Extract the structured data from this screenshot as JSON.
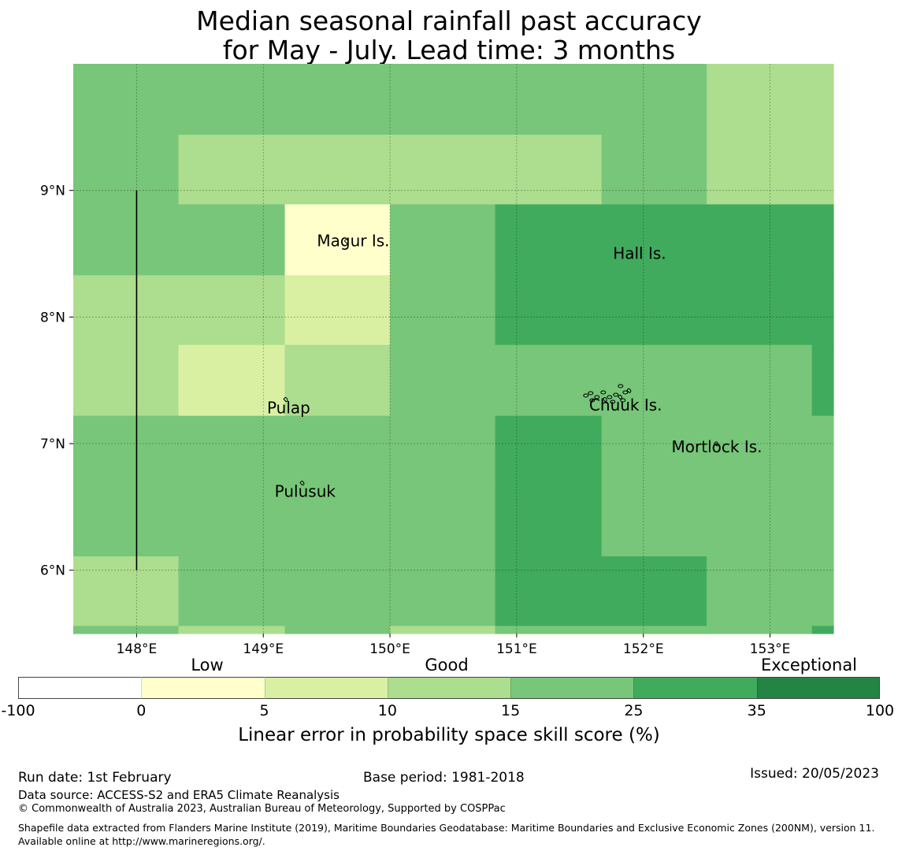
{
  "title": {
    "line1": "Median seasonal rainfall past accuracy",
    "line2": "for May - July. Lead time: 3 months"
  },
  "map": {
    "lon_range": [
      147.5,
      153.5
    ],
    "lat_range": [
      5.5,
      10.0
    ],
    "lon_ticks": [
      {
        "value": 148,
        "label": "148°E"
      },
      {
        "value": 149,
        "label": "149°E"
      },
      {
        "value": 150,
        "label": "150°E"
      },
      {
        "value": 151,
        "label": "151°E"
      },
      {
        "value": 152,
        "label": "152°E"
      },
      {
        "value": 153,
        "label": "153°E"
      }
    ],
    "lat_ticks": [
      {
        "value": 9,
        "label": "9°N"
      },
      {
        "value": 8,
        "label": "8°N"
      },
      {
        "value": 7,
        "label": "7°N"
      },
      {
        "value": 6,
        "label": "6°N"
      }
    ],
    "categories": {
      "c1": "#ffffcc",
      "c2": "#d9f0a3",
      "c3": "#addd8e",
      "c4": "#78c679",
      "c5": "#41ab5d"
    },
    "cells": [
      {
        "lon": [
          147.5,
          148.33
        ],
        "lat": [
          9.44,
          10.0
        ],
        "cat": "c4"
      },
      {
        "lon": [
          148.33,
          151.67
        ],
        "lat": [
          9.44,
          10.0
        ],
        "cat": "c4"
      },
      {
        "lon": [
          151.67,
          152.5
        ],
        "lat": [
          9.44,
          10.0
        ],
        "cat": "c4"
      },
      {
        "lon": [
          152.5,
          153.5
        ],
        "lat": [
          9.44,
          10.0
        ],
        "cat": "c3"
      },
      {
        "lon": [
          147.5,
          148.33
        ],
        "lat": [
          8.89,
          9.44
        ],
        "cat": "c4"
      },
      {
        "lon": [
          148.33,
          151.67
        ],
        "lat": [
          8.89,
          9.44
        ],
        "cat": "c3"
      },
      {
        "lon": [
          151.67,
          152.5
        ],
        "lat": [
          8.89,
          9.44
        ],
        "cat": "c4"
      },
      {
        "lon": [
          152.5,
          153.5
        ],
        "lat": [
          8.89,
          9.44
        ],
        "cat": "c3"
      },
      {
        "lon": [
          147.5,
          149.17
        ],
        "lat": [
          8.33,
          8.89
        ],
        "cat": "c4"
      },
      {
        "lon": [
          149.17,
          150.0
        ],
        "lat": [
          8.33,
          8.89
        ],
        "cat": "c1"
      },
      {
        "lon": [
          150.0,
          150.83
        ],
        "lat": [
          8.33,
          8.89
        ],
        "cat": "c4"
      },
      {
        "lon": [
          150.83,
          153.5
        ],
        "lat": [
          8.33,
          8.89
        ],
        "cat": "c5"
      },
      {
        "lon": [
          147.5,
          149.17
        ],
        "lat": [
          7.78,
          8.33
        ],
        "cat": "c3"
      },
      {
        "lon": [
          149.17,
          150.0
        ],
        "lat": [
          7.78,
          8.33
        ],
        "cat": "c2"
      },
      {
        "lon": [
          150.0,
          150.83
        ],
        "lat": [
          7.78,
          8.33
        ],
        "cat": "c4"
      },
      {
        "lon": [
          150.83,
          153.5
        ],
        "lat": [
          7.78,
          8.33
        ],
        "cat": "c5"
      },
      {
        "lon": [
          147.5,
          148.33
        ],
        "lat": [
          7.22,
          7.78
        ],
        "cat": "c3"
      },
      {
        "lon": [
          148.33,
          149.17
        ],
        "lat": [
          7.22,
          7.78
        ],
        "cat": "c2"
      },
      {
        "lon": [
          149.17,
          150.0
        ],
        "lat": [
          7.22,
          7.78
        ],
        "cat": "c3"
      },
      {
        "lon": [
          150.0,
          153.33
        ],
        "lat": [
          7.22,
          7.78
        ],
        "cat": "c4"
      },
      {
        "lon": [
          153.33,
          153.5
        ],
        "lat": [
          7.22,
          7.78
        ],
        "cat": "c5"
      },
      {
        "lon": [
          147.5,
          150.83
        ],
        "lat": [
          6.67,
          7.22
        ],
        "cat": "c4"
      },
      {
        "lon": [
          150.83,
          151.67
        ],
        "lat": [
          6.67,
          7.22
        ],
        "cat": "c5"
      },
      {
        "lon": [
          151.67,
          153.5
        ],
        "lat": [
          6.67,
          7.22
        ],
        "cat": "c4"
      },
      {
        "lon": [
          147.5,
          150.83
        ],
        "lat": [
          6.11,
          6.67
        ],
        "cat": "c4"
      },
      {
        "lon": [
          150.83,
          151.67
        ],
        "lat": [
          6.11,
          6.67
        ],
        "cat": "c5"
      },
      {
        "lon": [
          151.67,
          153.5
        ],
        "lat": [
          6.11,
          6.67
        ],
        "cat": "c4"
      },
      {
        "lon": [
          147.5,
          148.33
        ],
        "lat": [
          5.56,
          6.11
        ],
        "cat": "c3"
      },
      {
        "lon": [
          148.33,
          150.83
        ],
        "lat": [
          5.56,
          6.11
        ],
        "cat": "c4"
      },
      {
        "lon": [
          150.83,
          152.5
        ],
        "lat": [
          5.56,
          6.11
        ],
        "cat": "c5"
      },
      {
        "lon": [
          152.5,
          153.5
        ],
        "lat": [
          5.56,
          6.11
        ],
        "cat": "c4"
      },
      {
        "lon": [
          147.5,
          148.33
        ],
        "lat": [
          5.5,
          5.56
        ],
        "cat": "c4"
      },
      {
        "lon": [
          148.33,
          149.17
        ],
        "lat": [
          5.5,
          5.56
        ],
        "cat": "c3"
      },
      {
        "lon": [
          149.17,
          150.0
        ],
        "lat": [
          5.5,
          5.56
        ],
        "cat": "c4"
      },
      {
        "lon": [
          150.0,
          150.83
        ],
        "lat": [
          5.5,
          5.56
        ],
        "cat": "c3"
      },
      {
        "lon": [
          150.83,
          153.33
        ],
        "lat": [
          5.5,
          5.56
        ],
        "cat": "c4"
      },
      {
        "lon": [
          153.33,
          153.5
        ],
        "lat": [
          5.5,
          5.56
        ],
        "cat": "c5"
      }
    ],
    "boundary_line": {
      "lon": 148.0,
      "lat": [
        6.0,
        9.0
      ]
    },
    "islands": [
      {
        "name": "Magur Is.",
        "lon": 149.71,
        "lat": 8.56
      },
      {
        "name": "Hall Is.",
        "lon": 151.97,
        "lat": 8.46
      },
      {
        "name": "Pulap",
        "lon": 149.2,
        "lat": 7.24
      },
      {
        "name": "Chuuk Is.",
        "lon": 151.86,
        "lat": 7.26
      },
      {
        "name": "Mortlock Is.",
        "lon": 152.58,
        "lat": 6.93
      },
      {
        "name": "Pulusuk",
        "lon": 149.33,
        "lat": 6.58
      }
    ],
    "island_marks": [
      {
        "lon": 149.66,
        "lat": 8.6
      },
      {
        "lon": 149.18,
        "lat": 7.35
      },
      {
        "lon": 149.31,
        "lat": 6.69
      },
      {
        "lon": 151.7,
        "lat": 7.35
      },
      {
        "lon": 151.82,
        "lat": 7.37
      },
      {
        "lon": 151.89,
        "lat": 7.42
      },
      {
        "lon": 152.58,
        "lat": 7.0
      }
    ]
  },
  "colorbar": {
    "segments": [
      {
        "from": "-100",
        "to": "0",
        "color": "#ffffff"
      },
      {
        "from": "0",
        "to": "5",
        "color": "#ffffcc"
      },
      {
        "from": "5",
        "to": "10",
        "color": "#d9f0a3"
      },
      {
        "from": "10",
        "to": "15",
        "color": "#addd8e"
      },
      {
        "from": "15",
        "to": "25",
        "color": "#78c679"
      },
      {
        "from": "25",
        "to": "35",
        "color": "#41ab5d"
      },
      {
        "from": "35",
        "to": "100",
        "color": "#238443"
      }
    ],
    "ticks": [
      "-100",
      "0",
      "5",
      "10",
      "15",
      "25",
      "35",
      "100"
    ],
    "category_labels": {
      "low": "Low",
      "good": "Good",
      "exceptional": "Exceptional"
    },
    "title": "Linear error in probability space skill score (%)"
  },
  "footer": {
    "run_date": "Run date: 1st February",
    "base_period": "Base period: 1981-2018",
    "issued": "Issued: 20/05/2023",
    "data_source": "Data source: ACCESS-S2 and ERA5 Climate Reanalysis",
    "copyright": "© Commonwealth of Australia 2023, Australian Bureau of Meteorology, Supported by COSPPac",
    "shapefile": "Shapefile data extracted from Flanders Marine Institute (2019), Maritime Boundaries Geodatabase: Maritime Boundaries and Exclusive Economic Zones (200NM), version 11. Available online at http://www.marineregions.org/."
  }
}
